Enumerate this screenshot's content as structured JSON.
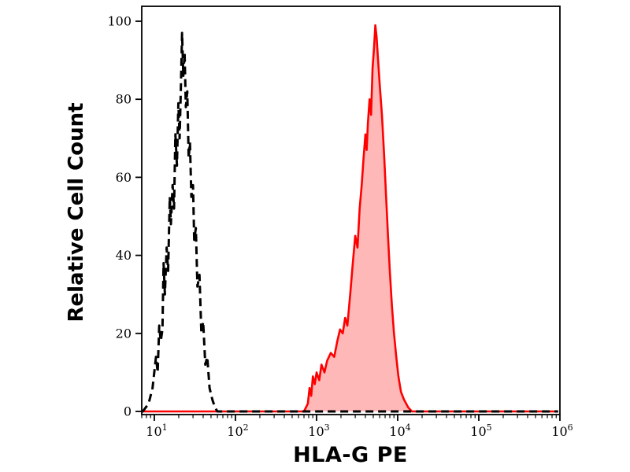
{
  "figure": {
    "background": "#ffffff",
    "frame_color": "#000000"
  },
  "chart_data": {
    "type": "area",
    "variant": "flow-cytometry-histogram",
    "title": "",
    "xlabel": "HLA-G PE",
    "ylabel": "Relative Cell Count",
    "x_scale": "log10",
    "xlim": [
      7,
      1000000
    ],
    "ylim": [
      0,
      100
    ],
    "grid": false,
    "legend": null,
    "y_ticks": [
      0,
      20,
      40,
      60,
      80,
      100
    ],
    "x_major_ticks": [
      10,
      100,
      1000,
      10000,
      100000,
      1000000
    ],
    "x_tick_labels": [
      {
        "base": "10",
        "exp": "1"
      },
      {
        "base": "10",
        "exp": "2"
      },
      {
        "base": "10",
        "exp": "3"
      },
      {
        "base": "10",
        "exp": "4"
      },
      {
        "base": "10",
        "exp": "5"
      },
      {
        "base": "10",
        "exp": "6"
      }
    ],
    "series": [
      {
        "name": "red-filled-histogram",
        "line_style": "solid",
        "stroke": "#fe0000",
        "stroke_width": 2.6,
        "fill": "#ffb8b8",
        "points": [
          [
            7.05,
            0
          ],
          [
            700,
            0
          ],
          [
            780,
            2
          ],
          [
            820,
            6
          ],
          [
            860,
            4
          ],
          [
            900,
            9
          ],
          [
            950,
            7
          ],
          [
            1000,
            10
          ],
          [
            1080,
            8
          ],
          [
            1150,
            12
          ],
          [
            1250,
            10
          ],
          [
            1350,
            13
          ],
          [
            1500,
            15
          ],
          [
            1650,
            14
          ],
          [
            1800,
            18
          ],
          [
            1950,
            21
          ],
          [
            2100,
            20
          ],
          [
            2250,
            24
          ],
          [
            2400,
            22
          ],
          [
            2600,
            30
          ],
          [
            2800,
            38
          ],
          [
            3000,
            45
          ],
          [
            3200,
            42
          ],
          [
            3400,
            52
          ],
          [
            3600,
            58
          ],
          [
            3800,
            65
          ],
          [
            4000,
            71
          ],
          [
            4150,
            67
          ],
          [
            4300,
            74
          ],
          [
            4500,
            80
          ],
          [
            4700,
            76
          ],
          [
            4900,
            88
          ],
          [
            5100,
            93
          ],
          [
            5300,
            99
          ],
          [
            5500,
            96
          ],
          [
            5700,
            91
          ],
          [
            6000,
            84
          ],
          [
            6400,
            76
          ],
          [
            6800,
            66
          ],
          [
            7200,
            55
          ],
          [
            7600,
            45
          ],
          [
            8000,
            36
          ],
          [
            8500,
            27
          ],
          [
            9000,
            20
          ],
          [
            9600,
            14
          ],
          [
            10200,
            9
          ],
          [
            11000,
            5
          ],
          [
            12000,
            3
          ],
          [
            13500,
            1
          ],
          [
            15000,
            0
          ],
          [
            950000,
            0
          ]
        ]
      },
      {
        "name": "dashed-black-histogram",
        "line_style": "dashed",
        "stroke": "#000000",
        "stroke_width": 3,
        "fill": "none",
        "points": [
          [
            7.05,
            0
          ],
          [
            7.2,
            0
          ],
          [
            8.5,
            2
          ],
          [
            9.5,
            6
          ],
          [
            10.5,
            14
          ],
          [
            11,
            10
          ],
          [
            11.5,
            22
          ],
          [
            12,
            18
          ],
          [
            12.6,
            21
          ],
          [
            13,
            38
          ],
          [
            13.5,
            30
          ],
          [
            14.2,
            42
          ],
          [
            14.8,
            36
          ],
          [
            15.5,
            55
          ],
          [
            16,
            48
          ],
          [
            16.8,
            58
          ],
          [
            17.5,
            52
          ],
          [
            18.2,
            71
          ],
          [
            19,
            63
          ],
          [
            19.8,
            79
          ],
          [
            20.5,
            70
          ],
          [
            21.3,
            84
          ],
          [
            22,
            97
          ],
          [
            22.8,
            86
          ],
          [
            23.6,
            92
          ],
          [
            24.5,
            78
          ],
          [
            25.5,
            82
          ],
          [
            26.5,
            65
          ],
          [
            27.5,
            69
          ],
          [
            28.6,
            55
          ],
          [
            30,
            58
          ],
          [
            31,
            44
          ],
          [
            32.5,
            47
          ],
          [
            34,
            32
          ],
          [
            36,
            35
          ],
          [
            38,
            20
          ],
          [
            40,
            23
          ],
          [
            42.5,
            12
          ],
          [
            45,
            14
          ],
          [
            48,
            6
          ],
          [
            52,
            3
          ],
          [
            56,
            1
          ],
          [
            60,
            0
          ],
          [
            950000,
            0
          ]
        ]
      }
    ]
  }
}
